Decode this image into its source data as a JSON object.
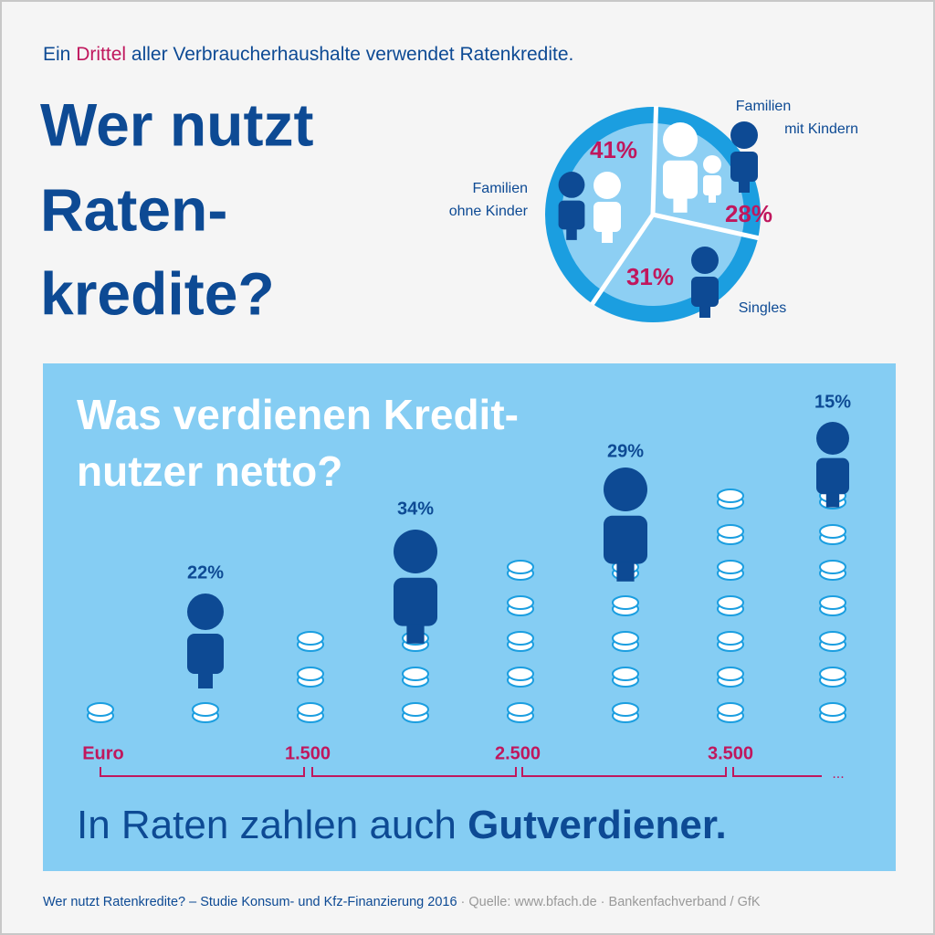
{
  "header": {
    "intro_before": "Ein",
    "intro_highlight": "Drittel",
    "intro_after": "aller Verbraucherhaushalte verwendet Ratenkredite.",
    "title_lines": [
      "Wer nutzt",
      "Raten-",
      "kredite?"
    ]
  },
  "chart_data": [
    {
      "type": "pie",
      "categories": [
        [
          "Familien",
          "mit Kindern"
        ],
        [
          "Singles"
        ],
        [
          "Familien",
          "ohne Kinder"
        ]
      ],
      "values": [
        28,
        31,
        41
      ],
      "value_labels": [
        "28%",
        "31%",
        "41%"
      ],
      "color": "#8dcff3",
      "label_color": "#c0175d"
    },
    {
      "type": "pictogram",
      "title_lines": [
        "Was verdienen Kredit-",
        "nutzer netto?"
      ],
      "boundaries": [
        "Euro",
        "1.500",
        "2.500",
        "3.500",
        "..."
      ],
      "values": [
        22,
        34,
        29,
        15
      ],
      "value_labels": [
        "22%",
        "34%",
        "29%",
        "15%"
      ],
      "color": "#0d4a94"
    }
  ],
  "footer": {
    "slogan_plain": "In Raten zahlen auch",
    "slogan_bold": "Gutverdiener.",
    "source_main": "Wer nutzt Ratenkredite? – Studie Konsum- und Kfz-Finanzierung 2016",
    "source_rest": "· Quelle: www.bfach.de · Bankenfachverband / GfK"
  }
}
